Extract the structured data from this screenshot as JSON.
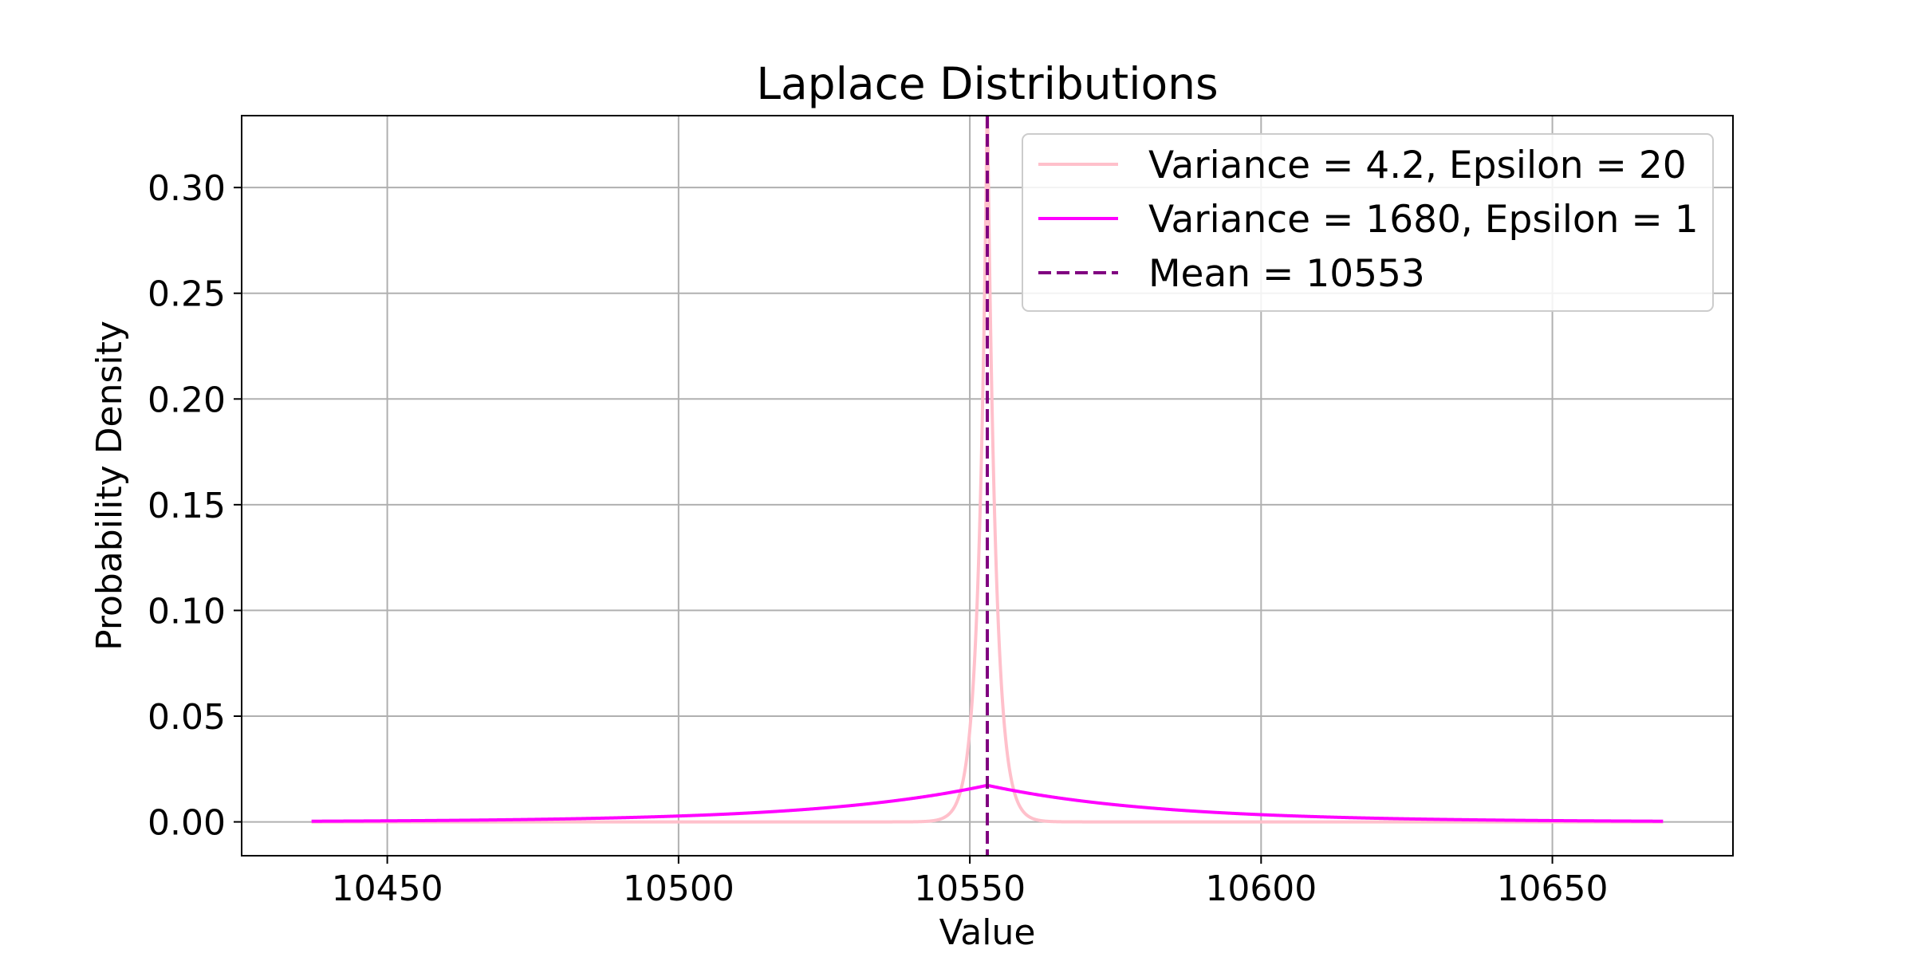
{
  "chart_data": {
    "type": "line",
    "title": "Laplace Distributions",
    "xlabel": "Value",
    "ylabel": "Probability Density",
    "xlim": [
      10425,
      10681
    ],
    "ylim": [
      -0.016,
      0.334
    ],
    "xticks": [
      10450,
      10500,
      10550,
      10600,
      10650
    ],
    "yticks": [
      0.0,
      0.05,
      0.1,
      0.15,
      0.2,
      0.25,
      0.3
    ],
    "ytick_labels": [
      "0.00",
      "0.05",
      "0.10",
      "0.15",
      "0.20",
      "0.25",
      "0.30"
    ],
    "grid": true,
    "legend_position": "top-right",
    "series": [
      {
        "name": "Variance = 4.2, Epsilon = 20",
        "kind": "laplace",
        "mean": 10553,
        "variance": 4.2,
        "x_start": 10437,
        "x_end": 10669,
        "peak": 0.345,
        "color": "#ffc0cb",
        "style": "solid"
      },
      {
        "name": "Variance = 1680, Epsilon = 1",
        "kind": "laplace",
        "mean": 10553,
        "variance": 1680,
        "x_start": 10437,
        "x_end": 10669,
        "peak": 0.0173,
        "color": "#ff00ff",
        "style": "solid"
      },
      {
        "name": "Mean = 10553",
        "kind": "vline",
        "x": 10553,
        "color": "#800080",
        "style": "dashed"
      }
    ]
  }
}
